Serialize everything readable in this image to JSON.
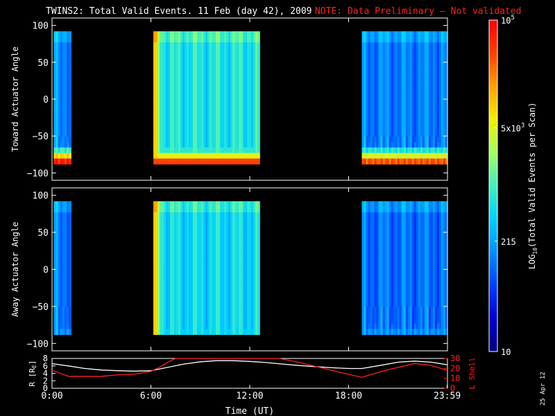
{
  "header": {
    "title": "TWINS2: Total Valid Events. 11 Feb (day  42), 2009",
    "note": "NOTE: Data Preliminary – Not validated",
    "note_color": "#ff2020"
  },
  "stamp": "25 Apr 12",
  "colorbar": {
    "label": "LOG10(Total Valid Events per Scan)",
    "label_main": "LOG",
    "label_sub": "10",
    "label_rest": "(Total Valid Events per Scan)",
    "scale": "log",
    "range": [
      10,
      100000
    ],
    "ticks": [
      {
        "value": 100000,
        "label": "10^5",
        "base": "10",
        "exp": "5"
      },
      {
        "value": 5000,
        "label": "5x10^3",
        "base": "5x10",
        "exp": "3"
      },
      {
        "value": 215,
        "label": "215",
        "base": "215",
        "exp": ""
      },
      {
        "value": 10,
        "label": "10",
        "base": "10",
        "exp": ""
      }
    ],
    "colors": [
      "#000080",
      "#0000d0",
      "#0040ff",
      "#0090ff",
      "#00d0ff",
      "#40f0c0",
      "#a0ff60",
      "#f0f000",
      "#ffa000",
      "#ff4000",
      "#ff0000"
    ]
  },
  "chart_data": [
    {
      "type": "heatmap",
      "panel": "toward",
      "ylabel": "Toward Actuator Angle",
      "ylim": [
        -110,
        110
      ],
      "yticks": [
        100,
        50,
        0,
        -50,
        -100
      ],
      "ytick_labels": [
        "100",
        "50",
        "0",
        "−50",
        "−100"
      ],
      "xlim": [
        0,
        24
      ],
      "data_extent_y": [
        -88,
        92
      ],
      "blocks": [
        {
          "start_hour": 0.1,
          "end_hour": 1.15,
          "level": 0.3,
          "low_angle_max": 0.95
        },
        {
          "start_hour": 6.15,
          "end_hour": 12.6,
          "level": 0.45,
          "low_angle_max": 0.9
        },
        {
          "start_hour": 18.8,
          "end_hour": 24.0,
          "level": 0.28,
          "low_angle_max": 0.88
        }
      ]
    },
    {
      "type": "heatmap",
      "panel": "away",
      "ylabel": "Away Actuator Angle",
      "ylim": [
        -110,
        110
      ],
      "yticks": [
        100,
        50,
        0,
        -50,
        -100
      ],
      "ytick_labels": [
        "100",
        "50",
        "0",
        "−50",
        "−100"
      ],
      "xlim": [
        0,
        24
      ],
      "data_extent_y": [
        -88,
        92
      ],
      "blocks": [
        {
          "start_hour": 0.1,
          "end_hour": 1.15,
          "level": 0.28,
          "low_angle_max": 0.3
        },
        {
          "start_hour": 6.15,
          "end_hour": 12.6,
          "level": 0.42,
          "low_angle_max": 0.4
        },
        {
          "start_hour": 18.8,
          "end_hour": 24.0,
          "level": 0.26,
          "low_angle_max": 0.3
        }
      ]
    },
    {
      "type": "line",
      "panel": "orbit",
      "xlabel": "Time (UT)",
      "xlim": [
        0,
        24
      ],
      "xticks": [
        0,
        6,
        12,
        18,
        23.983
      ],
      "xtick_labels": [
        "0:00",
        "6:00",
        "12:00",
        "18:00",
        "23:59"
      ],
      "ylabel_left": "R [RE]",
      "ylabel_left_main": "R [R",
      "ylabel_left_sub": "E",
      "ylabel_left_end": "]",
      "ylim_left": [
        0,
        8
      ],
      "yticks_left": [
        0,
        2,
        4,
        6,
        8
      ],
      "ylabel_right": "L Shell",
      "ylim_right": [
        0,
        30
      ],
      "yticks_right": [
        0,
        10,
        20,
        30
      ],
      "series": [
        {
          "name": "R",
          "color": "#ffffff",
          "axis": "left",
          "x": [
            0,
            1,
            2,
            3,
            4,
            5,
            6,
            7,
            8,
            9,
            10,
            11,
            12,
            13,
            14,
            15,
            16,
            17,
            18,
            18.8,
            20,
            21,
            22,
            23,
            24
          ],
          "y": [
            6.6,
            6.0,
            5.3,
            4.9,
            4.7,
            4.6,
            4.7,
            5.6,
            6.5,
            7.1,
            7.4,
            7.4,
            7.2,
            6.9,
            6.5,
            6.1,
            5.8,
            5.5,
            5.3,
            5.3,
            6.2,
            7.0,
            7.3,
            7.0,
            6.3
          ]
        },
        {
          "name": "L Shell",
          "color": "#ff2020",
          "axis": "right",
          "x": [
            0,
            1,
            2,
            3,
            4,
            5,
            6,
            6.5,
            7,
            7.5,
            13.8,
            15,
            16,
            17,
            18,
            18.8,
            20,
            21,
            22,
            23,
            24
          ],
          "y": [
            18,
            12,
            12,
            12,
            13.5,
            14,
            17,
            21,
            26,
            30,
            30,
            26,
            22,
            18,
            14,
            11,
            17,
            21,
            25,
            23,
            18
          ]
        }
      ]
    }
  ]
}
